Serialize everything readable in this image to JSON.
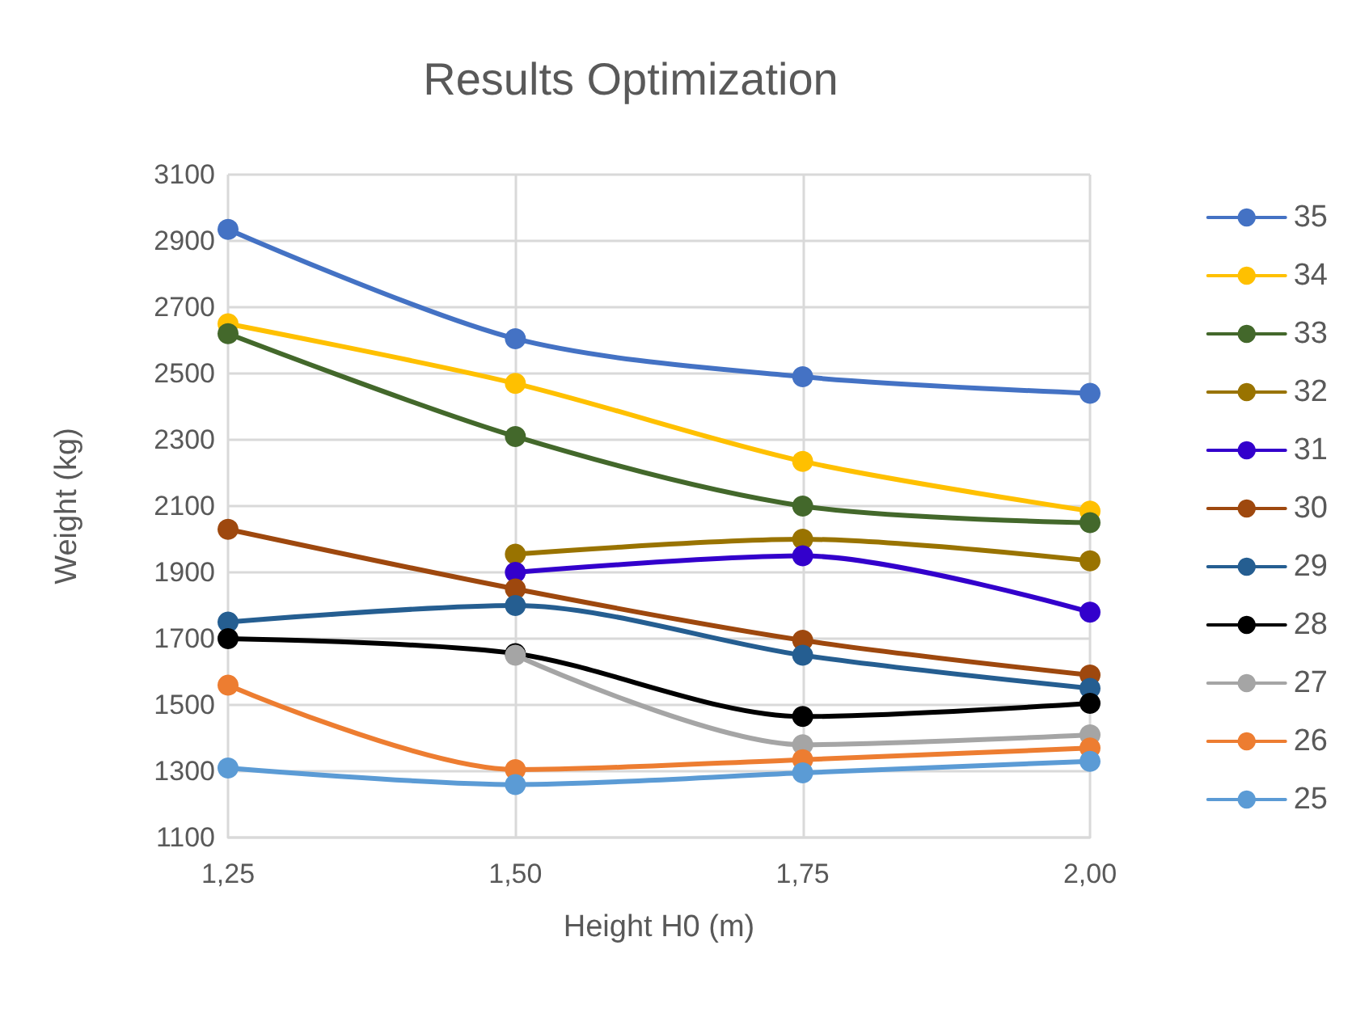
{
  "chart_data": {
    "type": "line",
    "title": "Results Optimization",
    "xlabel": "Height H0 (m)",
    "ylabel": "Weight (kg)",
    "categories": [
      "1,25",
      "1,50",
      "1,75",
      "2,00"
    ],
    "ylim": [
      1100,
      3100
    ],
    "yticks": [
      1100,
      1300,
      1500,
      1700,
      1900,
      2100,
      2300,
      2500,
      2700,
      2900,
      3100
    ],
    "grid": true,
    "legend": "right",
    "marker": "circle",
    "line_style": "solid",
    "series": [
      {
        "name": "35",
        "color": "#4472c4",
        "values": [
          2935,
          2605,
          2490,
          2440
        ]
      },
      {
        "name": "34",
        "color": "#ffc000",
        "values": [
          2650,
          2470,
          2235,
          2085
        ]
      },
      {
        "name": "33",
        "color": "#43682b",
        "values": [
          2620,
          2310,
          2100,
          2050
        ]
      },
      {
        "name": "32",
        "color": "#997300",
        "values": [
          null,
          1955,
          2000,
          1935
        ]
      },
      {
        "name": "31",
        "color": "#3300cc",
        "values": [
          null,
          1900,
          1950,
          1780
        ]
      },
      {
        "name": "30",
        "color": "#9e480e",
        "values": [
          2030,
          1850,
          1695,
          1590
        ]
      },
      {
        "name": "29",
        "color": "#255e91",
        "values": [
          1750,
          1800,
          1650,
          1550
        ]
      },
      {
        "name": "28",
        "color": "#000000",
        "values": [
          1700,
          1655,
          1465,
          1505
        ]
      },
      {
        "name": "27",
        "color": "#a5a5a5",
        "values": [
          null,
          1650,
          1380,
          1410
        ]
      },
      {
        "name": "26",
        "color": "#ed7d31",
        "values": [
          1560,
          1305,
          1335,
          1370
        ]
      },
      {
        "name": "25",
        "color": "#5b9bd5",
        "values": [
          1310,
          1260,
          1295,
          1330
        ]
      }
    ]
  }
}
